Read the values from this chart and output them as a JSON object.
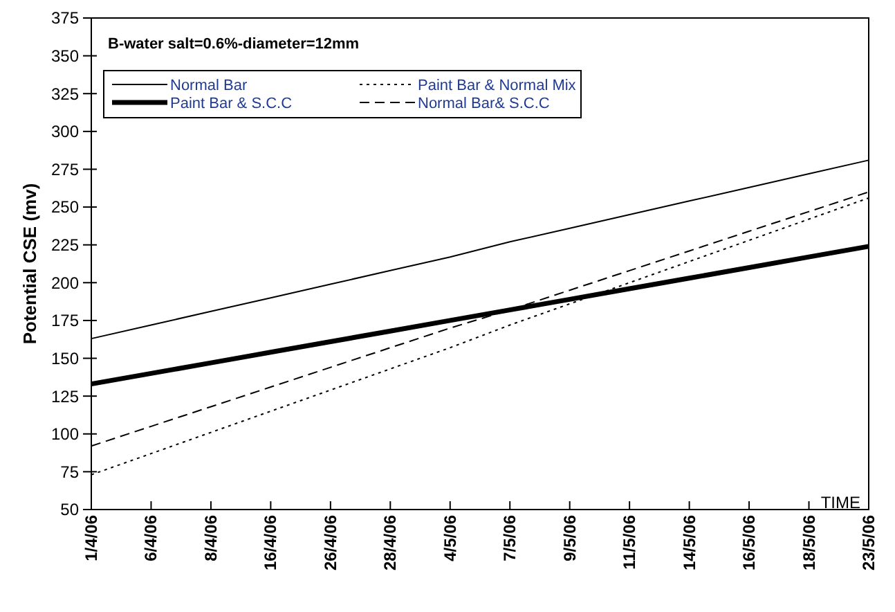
{
  "chart_data": {
    "type": "line",
    "title": "B-water salt=0.6%-diameter=12mm",
    "xlabel": "TIME",
    "ylabel": "Potential CSE (mv)",
    "categories": [
      "1/4/06",
      "6/4/06",
      "8/4/06",
      "16/4/06",
      "26/4/06",
      "28/4/06",
      "4/5/06",
      "7/5/06",
      "9/5/06",
      "11/5/06",
      "14/5/06",
      "16/5/06",
      "18/5/06",
      "23/5/06"
    ],
    "series": [
      {
        "name": "Normal Bar",
        "color": "#000000",
        "line_style": "solid",
        "values": [
          163,
          172,
          181,
          190,
          199,
          208,
          217,
          227,
          236,
          245,
          254,
          263,
          272,
          281
        ]
      },
      {
        "name": "Paint Bar & S.C.C",
        "color": "#000000",
        "line_style": "solid",
        "values": [
          133,
          140,
          147,
          154,
          161,
          168,
          175,
          182,
          189,
          196,
          203,
          210,
          217,
          224
        ]
      },
      {
        "name": "Paint Bar & Normal Mix",
        "color": "#000000",
        "line_style": "dotted",
        "values": [
          73,
          87,
          101,
          115,
          129,
          143,
          157,
          172,
          186,
          200,
          214,
          228,
          242,
          256
        ]
      },
      {
        "name": "Normal Bar& S.C.C",
        "color": "#000000",
        "line_style": "dashed",
        "values": [
          92,
          105,
          118,
          131,
          144,
          157,
          170,
          182,
          195,
          208,
          221,
          234,
          247,
          260
        ]
      }
    ],
    "ylim": [
      50,
      375
    ],
    "yticks": [
      50,
      75,
      100,
      125,
      150,
      175,
      200,
      225,
      250,
      275,
      300,
      325,
      350,
      375
    ],
    "grid": false,
    "legend": "top left",
    "marker": "none"
  }
}
